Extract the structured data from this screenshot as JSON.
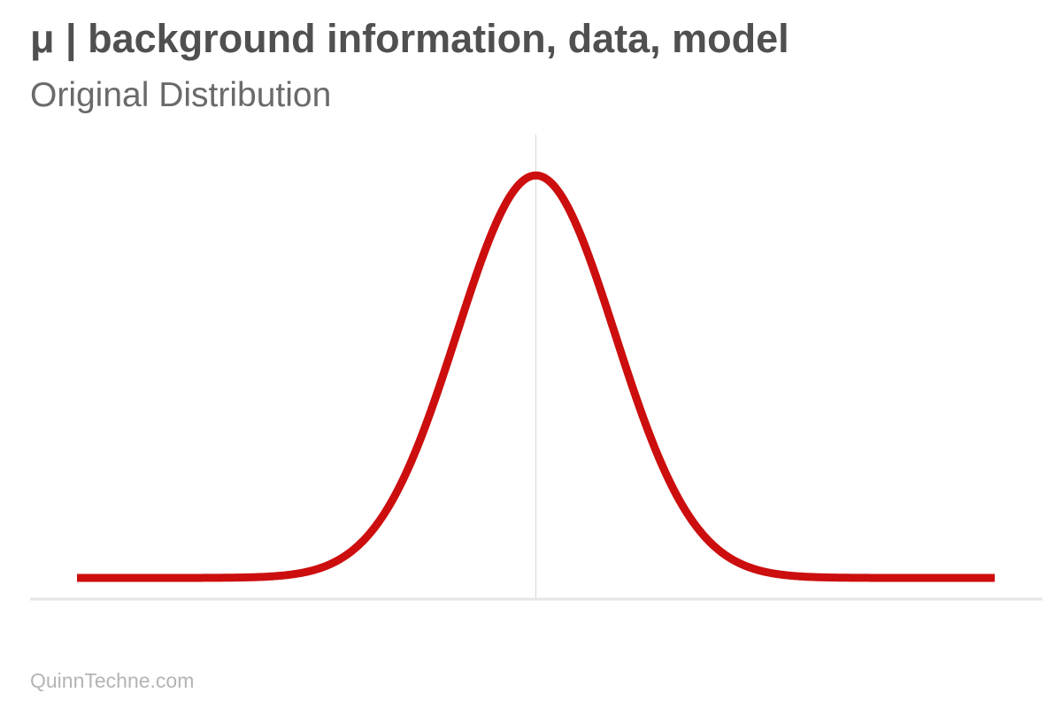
{
  "header": {
    "title": "μ | background information, data, model",
    "subtitle": "Original Distribution"
  },
  "footer": {
    "brand": "QuinnTechne.com"
  },
  "colors": {
    "curve": "#cc0e0e",
    "axis": "#e6e6e6",
    "mean_line": "#d9d9d9"
  },
  "chart_data": {
    "type": "line",
    "title": "",
    "xlabel": "",
    "ylabel": "",
    "distribution": "normal",
    "mean": 0,
    "sd": 1,
    "xlim": [
      -5.8,
      5.8
    ],
    "ylim": [
      0,
      0.55
    ],
    "mean_line": 0,
    "grid": false,
    "legend": "none"
  }
}
